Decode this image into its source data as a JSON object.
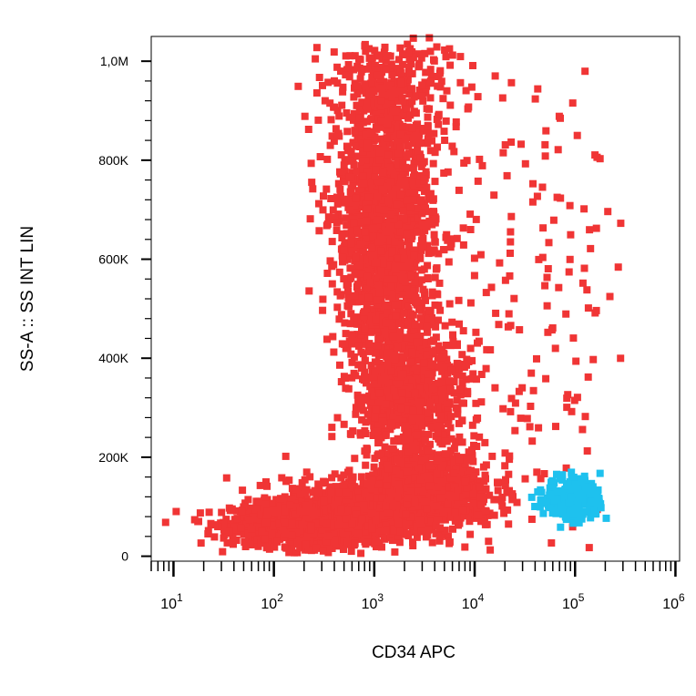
{
  "chart_data": {
    "type": "scatter",
    "xlabel": "CD34 APC",
    "ylabel": "SS-A :: SS INT LIN",
    "xscale": "log",
    "xlim": [
      6,
      1100000
    ],
    "ylim": [
      -10000,
      1050000
    ],
    "grid": false,
    "x_ticks": [
      {
        "value": 10,
        "base": "10",
        "exp": "1"
      },
      {
        "value": 100,
        "base": "10",
        "exp": "2"
      },
      {
        "value": 1000,
        "base": "10",
        "exp": "3"
      },
      {
        "value": 10000,
        "base": "10",
        "exp": "4"
      },
      {
        "value": 100000,
        "base": "10",
        "exp": "5"
      },
      {
        "value": 1000000,
        "base": "10",
        "exp": "6"
      }
    ],
    "y_ticks": [
      {
        "value": 0,
        "label": "0"
      },
      {
        "value": 200000,
        "label": "200K"
      },
      {
        "value": 400000,
        "label": "400K"
      },
      {
        "value": 600000,
        "label": "600K"
      },
      {
        "value": 800000,
        "label": "800K"
      },
      {
        "value": 1000000,
        "label": "1,0M"
      }
    ],
    "series": [
      {
        "color": "#f03535",
        "clusters": [
          {
            "cx": 2.35,
            "cy": 65000,
            "sx": 0.38,
            "sy": 22000,
            "n": 1300
          },
          {
            "cx": 2.95,
            "cy": 95000,
            "sx": 0.42,
            "sy": 30000,
            "n": 1100
          },
          {
            "cx": 3.55,
            "cy": 135000,
            "sx": 0.32,
            "sy": 35000,
            "n": 800
          },
          {
            "cx": 3.35,
            "cy": 330000,
            "sx": 0.28,
            "sy": 75000,
            "n": 900
          },
          {
            "cx": 3.1,
            "cy": 650000,
            "sx": 0.24,
            "sy": 120000,
            "n": 1500
          },
          {
            "cx": 3.15,
            "cy": 920000,
            "sx": 0.3,
            "sy": 80000,
            "n": 450
          },
          {
            "cx": 4.1,
            "cy": 500000,
            "sx": 0.45,
            "sy": 250000,
            "n": 120
          },
          {
            "cx": 4.9,
            "cy": 550000,
            "sx": 0.25,
            "sy": 250000,
            "n": 70
          }
        ]
      },
      {
        "color": "#1ec1ee",
        "clusters": [
          {
            "cx": 4.98,
            "cy": 115000,
            "sx": 0.14,
            "sy": 22000,
            "n": 260
          }
        ]
      }
    ]
  }
}
